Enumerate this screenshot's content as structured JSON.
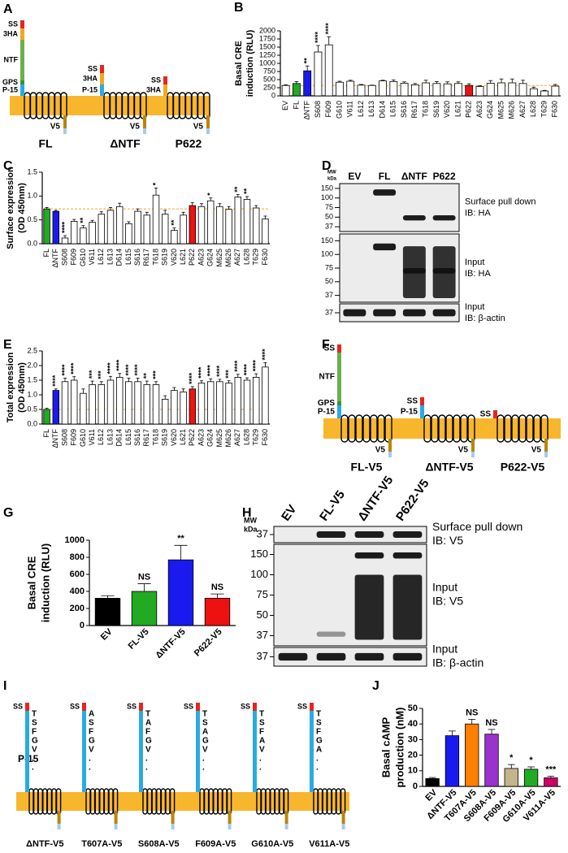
{
  "panel_letters": [
    "A",
    "B",
    "C",
    "D",
    "E",
    "F",
    "G",
    "H",
    "I",
    "J"
  ],
  "chart_data": [
    {
      "type": "bar",
      "ylabel": [
        "Basal CRE",
        "induction (RLU)"
      ],
      "categories": [
        "EV",
        "FL",
        "ΔNTF",
        "S608",
        "F609",
        "G610",
        "V611",
        "L612",
        "L613",
        "D614",
        "L615",
        "S616",
        "R617",
        "T618",
        "S619",
        "V620",
        "L621",
        "P622",
        "A623",
        "G624",
        "M625",
        "M626",
        "A627",
        "L628",
        "T629",
        "F630"
      ],
      "values": [
        320,
        380,
        770,
        1350,
        1570,
        420,
        450,
        330,
        320,
        460,
        440,
        390,
        340,
        400,
        380,
        370,
        380,
        320,
        290,
        390,
        400,
        400,
        380,
        220,
        150,
        300
      ],
      "errors": [
        20,
        60,
        150,
        200,
        250,
        30,
        30,
        20,
        10,
        20,
        50,
        40,
        40,
        80,
        60,
        60,
        50,
        50,
        20,
        80,
        120,
        120,
        100,
        50,
        20,
        50
      ],
      "colors": [
        "#ffffff",
        "#22aa22",
        "#1a1aee",
        "#ffffff",
        "#ffffff",
        "#ffffff",
        "#ffffff",
        "#ffffff",
        "#ffffff",
        "#ffffff",
        "#ffffff",
        "#ffffff",
        "#ffffff",
        "#ffffff",
        "#ffffff",
        "#ffffff",
        "#ffffff",
        "#ee1111",
        "#ffffff",
        "#ffffff",
        "#ffffff",
        "#ffffff",
        "#ffffff",
        "#ffffff",
        "#ffffff",
        "#ffffff"
      ],
      "annotations": [
        null,
        null,
        "**",
        "****",
        "****",
        null,
        null,
        null,
        null,
        null,
        null,
        null,
        null,
        null,
        null,
        null,
        null,
        null,
        null,
        null,
        null,
        null,
        null,
        null,
        null,
        null
      ],
      "reference_line": 320,
      "ylim": [
        0,
        2000
      ],
      "yticks": [
        0,
        250,
        500,
        750,
        1000,
        1250,
        1500,
        1750,
        2000
      ]
    },
    {
      "type": "bar",
      "ylabel": [
        "Surface expression",
        "(OD 450nm)"
      ],
      "categories": [
        "FL",
        "ΔNTF",
        "S608",
        "F609",
        "G610",
        "V611",
        "L612",
        "L613",
        "D614",
        "L615",
        "S616",
        "R617",
        "T618",
        "S619",
        "V620",
        "L621",
        "P622",
        "A623",
        "G624",
        "M625",
        "M626",
        "A627",
        "L628",
        "T629",
        "F630"
      ],
      "values": [
        0.73,
        0.68,
        0.12,
        0.47,
        0.33,
        0.45,
        0.62,
        0.7,
        0.78,
        0.42,
        0.68,
        0.6,
        1.02,
        0.62,
        0.28,
        0.6,
        0.8,
        0.78,
        0.9,
        0.78,
        0.72,
        0.98,
        0.93,
        0.75,
        0.52
      ],
      "errors": [
        0.03,
        0.02,
        0.05,
        0.04,
        0.05,
        0.04,
        0.05,
        0.06,
        0.07,
        0.04,
        0.05,
        0.06,
        0.15,
        0.08,
        0.05,
        0.06,
        0.06,
        0.06,
        0.06,
        0.06,
        0.06,
        0.05,
        0.06,
        0.05,
        0.06
      ],
      "colors": [
        "#22aa22",
        "#1a1aee",
        "#ffffff",
        "#ffffff",
        "#ffffff",
        "#ffffff",
        "#ffffff",
        "#ffffff",
        "#ffffff",
        "#ffffff",
        "#ffffff",
        "#ffffff",
        "#ffffff",
        "#ffffff",
        "#ffffff",
        "#ffffff",
        "#ee1111",
        "#ffffff",
        "#ffffff",
        "#ffffff",
        "#ffffff",
        "#ffffff",
        "#ffffff",
        "#ffffff",
        "#ffffff"
      ],
      "annotations": [
        null,
        null,
        "****",
        null,
        "**",
        null,
        null,
        null,
        null,
        null,
        null,
        null,
        "*",
        null,
        "**",
        null,
        null,
        null,
        "*",
        null,
        null,
        "**",
        "**",
        null,
        null
      ],
      "reference_line": 0.73,
      "ylim": [
        0,
        1.5
      ],
      "yticks": [
        {
          "value": 0,
          "label": "0.0"
        },
        {
          "value": 0.5,
          "label": "0.5"
        },
        {
          "value": 1,
          "label": "1.0"
        },
        {
          "value": 1.5,
          "label": "1.5"
        }
      ]
    },
    {
      "type": "bar",
      "ylabel": [
        "Total expression",
        "(OD 450nm)"
      ],
      "categories": [
        "FL",
        "ΔNTF",
        "S608",
        "F609",
        "G610",
        "V611",
        "L612",
        "L613",
        "D614",
        "L615",
        "S616",
        "R617",
        "T618",
        "S619",
        "V620",
        "L621",
        "P622",
        "A623",
        "G624",
        "M625",
        "M626",
        "A627",
        "L628",
        "T629",
        "F630"
      ],
      "values": [
        0.5,
        1.15,
        1.45,
        1.5,
        1.05,
        1.35,
        1.35,
        1.5,
        1.6,
        1.45,
        1.45,
        1.35,
        1.35,
        0.85,
        1.15,
        1.1,
        1.2,
        1.4,
        1.45,
        1.45,
        1.4,
        1.6,
        1.5,
        1.6,
        1.95
      ],
      "errors": [
        0.04,
        0.05,
        0.12,
        0.12,
        0.15,
        0.12,
        0.1,
        0.13,
        0.13,
        0.12,
        0.12,
        0.12,
        0.1,
        0.12,
        0.1,
        0.1,
        0.08,
        0.08,
        0.1,
        0.08,
        0.08,
        0.1,
        0.08,
        0.12,
        0.15
      ],
      "colors": [
        "#22aa22",
        "#1a1aee",
        "#ffffff",
        "#ffffff",
        "#ffffff",
        "#ffffff",
        "#ffffff",
        "#ffffff",
        "#ffffff",
        "#ffffff",
        "#ffffff",
        "#ffffff",
        "#ffffff",
        "#ffffff",
        "#ffffff",
        "#ffffff",
        "#ee1111",
        "#ffffff",
        "#ffffff",
        "#ffffff",
        "#ffffff",
        "#ffffff",
        "#ffffff",
        "#ffffff",
        "#ffffff"
      ],
      "annotations": [
        null,
        "****",
        "****",
        "****",
        null,
        "***",
        "***",
        "****",
        "****",
        "****",
        "****",
        "**",
        "***",
        null,
        null,
        null,
        "****",
        "****",
        "****",
        "****",
        "***",
        "****",
        "****",
        "****",
        "****"
      ],
      "reference_line": 0.5,
      "ylim": [
        0,
        2.5
      ],
      "yticks": [
        {
          "value": 0,
          "label": "0.0"
        },
        {
          "value": 0.5,
          "label": "0.5"
        },
        {
          "value": 1,
          "label": "1.0"
        },
        {
          "value": 1.5,
          "label": "1.5"
        },
        {
          "value": 2,
          "label": "2.0"
        },
        {
          "value": 2.5,
          "label": "2.5"
        }
      ]
    },
    {
      "type": "bar",
      "ylabel": [
        "Basal CRE",
        "induction (RLU)"
      ],
      "categories": [
        "EV",
        "FL-V5",
        "ΔNTF-V5",
        "P622-V5"
      ],
      "values": [
        320,
        400,
        770,
        320
      ],
      "errors": [
        30,
        90,
        170,
        50
      ],
      "colors": [
        "#000000",
        "#22aa22",
        "#1a1aee",
        "#ee1111"
      ],
      "annotations": [
        null,
        "NS",
        "**",
        "NS"
      ],
      "ylim": [
        0,
        1000
      ],
      "yticks": [
        0,
        200,
        400,
        600,
        800,
        1000
      ]
    },
    {
      "type": "bar",
      "ylabel": [
        "Basal cAMP",
        "production (nM)"
      ],
      "categories": [
        "EV",
        "ΔNTF-V5",
        "T607A-V5",
        "S608A-V5",
        "F609A-V5",
        "G610A-V5",
        "V611A-V5"
      ],
      "values": [
        5,
        32.5,
        40,
        33.5,
        11.5,
        11,
        5.5
      ],
      "errors": [
        0.7,
        3,
        3,
        3,
        2.5,
        1.5,
        1
      ],
      "colors": [
        "#000000",
        "#1a1aee",
        "#ff7f00",
        "#9933cc",
        "#c4b48a",
        "#22aa22",
        "#cc0066"
      ],
      "annotations": [
        null,
        null,
        "NS",
        "NS",
        "*",
        "*",
        "***"
      ],
      "ylim": [
        0,
        50
      ],
      "yticks": [
        0,
        10,
        20,
        30,
        40,
        50
      ]
    }
  ],
  "diagrams": {
    "A": {
      "membrane_color": "#f8b62d",
      "constructs": [
        {
          "name": "FL",
          "color": "#22aa22",
          "tail": "V5",
          "segments": [
            {
              "label": "SS",
              "color": "#e8241f"
            },
            {
              "label": "3HA",
              "color": "#f5a623"
            },
            {
              "label": "NTF",
              "color": "#6ab04c"
            },
            {
              "label": "GPS",
              "color": "#3f8f2f"
            },
            {
              "label": "P-15",
              "color": "#29abe2"
            }
          ]
        },
        {
          "name": "ΔNTF",
          "color": "#1a1aee",
          "tail": "V5",
          "segments": [
            {
              "label": "SS",
              "color": "#e8241f"
            },
            {
              "label": "3HA",
              "color": "#f5a623"
            },
            {
              "label": "P-15",
              "color": "#29abe2"
            }
          ]
        },
        {
          "name": "P622",
          "color": "#ee1111",
          "tail": "V5",
          "segments": [
            {
              "label": "SS",
              "color": "#e8241f"
            },
            {
              "label": "3HA",
              "color": "#f5a623"
            }
          ]
        }
      ]
    },
    "F": {
      "membrane_color": "#f8b62d",
      "constructs": [
        {
          "name": "FL-V5",
          "color": "#22aa22",
          "tail": "V5",
          "segments": [
            {
              "label": "SS",
              "color": "#e8241f"
            },
            {
              "label": "NTF",
              "color": "#6ab04c"
            },
            {
              "label": "GPS",
              "color": "#3f8f2f"
            },
            {
              "label": "P-15",
              "color": "#29abe2"
            }
          ]
        },
        {
          "name": "ΔNTF-V5",
          "color": "#1a1aee",
          "tail": "V5",
          "segments": [
            {
              "label": "SS",
              "color": "#e8241f"
            },
            {
              "label": "P-15",
              "color": "#29abe2"
            }
          ]
        },
        {
          "name": "P622-V5",
          "color": "#ee1111",
          "tail": "V5",
          "segments": [
            {
              "label": "SS",
              "color": "#e8241f"
            }
          ]
        }
      ]
    },
    "I": {
      "membrane_color": "#f8b62d",
      "region_label": "P-15",
      "constructs": [
        {
          "name": "ΔNTF-V5",
          "color": "#1a1aee",
          "segments": [
            {
              "label": "SS",
              "color": "#e8241f"
            },
            {
              "color": "#29abe2"
            }
          ],
          "sequence": [
            "T",
            "S",
            "F",
            "G",
            "V",
            ".",
            "."
          ]
        },
        {
          "name": "T607A-V5",
          "color": "#f5a623",
          "segments": [
            {
              "label": "SS",
              "color": "#e8241f"
            },
            {
              "color": "#29abe2"
            }
          ],
          "sequence": [
            "A",
            "S",
            "F",
            "G",
            "V",
            ".",
            "."
          ]
        },
        {
          "name": "S608A-V5",
          "color": "#e0309a",
          "segments": [
            {
              "label": "SS",
              "color": "#e8241f"
            },
            {
              "color": "#29abe2"
            }
          ],
          "sequence": [
            "T",
            "A",
            "F",
            "G",
            "V",
            ".",
            "."
          ]
        },
        {
          "name": "F609A-V5",
          "color": "#c8a020",
          "segments": [
            {
              "label": "SS",
              "color": "#e8241f"
            },
            {
              "color": "#29abe2"
            }
          ],
          "sequence": [
            "T",
            "S",
            "A",
            "G",
            "V",
            ".",
            "."
          ]
        },
        {
          "name": "G610A-V5",
          "color": "#22aa22",
          "segments": [
            {
              "label": "SS",
              "color": "#e8241f"
            },
            {
              "color": "#29abe2"
            }
          ],
          "sequence": [
            "T",
            "S",
            "F",
            "A",
            "V",
            ".",
            "."
          ]
        },
        {
          "name": "V611A-V5",
          "color": "#cc1111",
          "segments": [
            {
              "label": "SS",
              "color": "#e8241f"
            },
            {
              "color": "#29abe2"
            }
          ],
          "sequence": [
            "T",
            "S",
            "F",
            "G",
            "A",
            ".",
            "."
          ]
        }
      ]
    }
  },
  "blots": {
    "D": {
      "mw": [
        "MW",
        "kDa"
      ],
      "lanes": [
        {
          "label": "EV",
          "color": "#000000"
        },
        {
          "label": "FL",
          "color": "#22aa22"
        },
        {
          "label": "ΔNTF",
          "color": "#1a1aee"
        },
        {
          "label": "P622",
          "color": "#ee1111"
        }
      ],
      "panels": [
        {
          "markers": [
            150,
            100,
            75,
            50,
            37
          ],
          "label_lines": [
            "Surface pull down",
            "IB: HA"
          ]
        },
        {
          "markers": [
            150,
            100,
            75,
            50,
            37
          ],
          "label_lines": [
            "Input",
            "IB: HA"
          ]
        },
        {
          "markers": [
            37
          ],
          "label_lines": [
            "Input",
            "IB: β-actin"
          ]
        }
      ]
    },
    "H": {
      "mw": [
        "MW",
        "kDa"
      ],
      "lanes": [
        {
          "label": "EV",
          "color": "#000000"
        },
        {
          "label": "FL-V5",
          "color": "#22aa22"
        },
        {
          "label": "ΔNTF-V5",
          "color": "#1a1aee"
        },
        {
          "label": "P622-V5",
          "color": "#ee1111"
        }
      ],
      "panels": [
        {
          "markers": [
            37
          ],
          "label_lines": [
            "Surface pull down",
            "IB: V5"
          ]
        },
        {
          "markers": [
            150,
            100,
            75,
            50,
            37
          ],
          "label_lines": [
            "Input",
            "IB: V5"
          ]
        },
        {
          "markers": [
            37
          ],
          "label_lines": [
            "Input",
            "IB: β-actin"
          ]
        }
      ]
    }
  }
}
